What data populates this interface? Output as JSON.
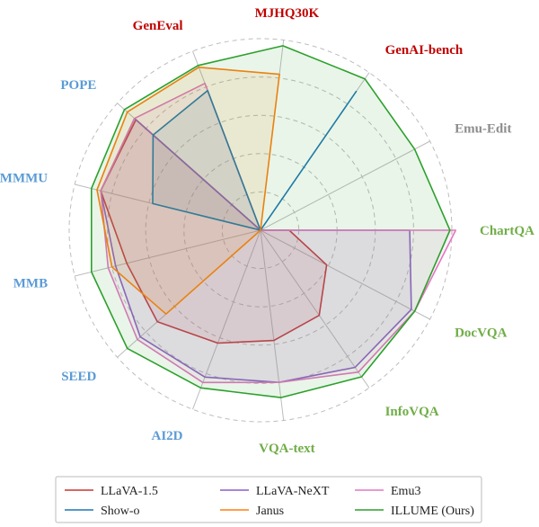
{
  "chart_data": {
    "type": "radar",
    "title": "",
    "range": [
      0,
      1
    ],
    "grid": true,
    "legend_position": "bottom",
    "axes": [
      {
        "label": "ChartQA",
        "color": "#70ad47"
      },
      {
        "label": "DocVQA",
        "color": "#70ad47"
      },
      {
        "label": "InfoVQA",
        "color": "#70ad47"
      },
      {
        "label": "VQA-text",
        "color": "#70ad47"
      },
      {
        "label": "AI2D",
        "color": "#5b9bd5"
      },
      {
        "label": "SEED",
        "color": "#5b9bd5"
      },
      {
        "label": "MMB",
        "color": "#5b9bd5"
      },
      {
        "label": "MMMU",
        "color": "#5b9bd5"
      },
      {
        "label": "POPE",
        "color": "#5b9bd5"
      },
      {
        "label": "GenEval",
        "color": "#c00000"
      },
      {
        "label": "MJHQ30K",
        "color": "#c00000"
      },
      {
        "label": "GenAI-bench",
        "color": "#c00000"
      },
      {
        "label": "Emu-Edit",
        "color": "#8c8c8c"
      }
    ],
    "series": [
      {
        "name": "LLaVA-1.5",
        "color": "#cc3333",
        "values": [
          0.15,
          0.39,
          0.54,
          0.58,
          0.63,
          0.72,
          0.72,
          0.86,
          0.87,
          0,
          0,
          0,
          0
        ]
      },
      {
        "name": "LLaVA-NeXT",
        "color": "#8a5fc9",
        "values": [
          0.78,
          0.89,
          0.87,
          0.8,
          0.82,
          0.84,
          0.78,
          0.86,
          0.88,
          0,
          0,
          0,
          0
        ]
      },
      {
        "name": "Emu3",
        "color": "#e377c2",
        "values": [
          1.02,
          0.91,
          0.9,
          0.8,
          0.85,
          0.86,
          0.82,
          0.86,
          0.88,
          0.82,
          0,
          0,
          0
        ]
      },
      {
        "name": "Show-o",
        "color": "#1f77b4",
        "values": [
          0,
          0,
          0,
          0,
          0,
          0,
          0,
          0.58,
          0.75,
          0.78,
          0,
          0.88,
          0
        ]
      },
      {
        "name": "Janus",
        "color": "#ff7f0e",
        "values": [
          0,
          0,
          0,
          0,
          0,
          0.66,
          0.8,
          0.88,
          0.93,
          0.91,
          0.82,
          0,
          0
        ]
      },
      {
        "name": "ILLUME (Ours)",
        "color": "#2ca02c",
        "values": [
          0.99,
          0.91,
          0.93,
          0.88,
          0.88,
          0.93,
          0.91,
          0.91,
          0.95,
          0.92,
          0.97,
          0.96,
          0.91
        ]
      }
    ]
  }
}
